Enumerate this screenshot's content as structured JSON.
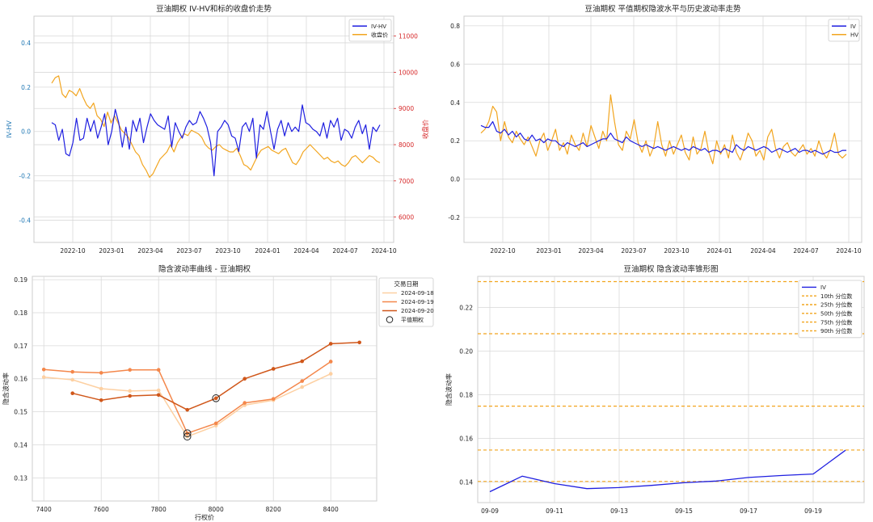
{
  "chart_data": [
    {
      "id": "p1",
      "type": "line",
      "title": "豆油期权 IV-HV和标的收盘价走势",
      "ylabel": "IV-HV",
      "y2label": "收盘价",
      "x_ticks": [
        "2022-10",
        "2023-01",
        "2023-04",
        "2023-07",
        "2023-10",
        "2024-01",
        "2024-04",
        "2024-07",
        "2024-10"
      ],
      "ylim": [
        -0.5,
        0.52
      ],
      "y_ticks": [
        "-0.4",
        "-0.2",
        "0.0",
        "0.2",
        "0.4"
      ],
      "y2lim": [
        5300,
        11550
      ],
      "y2_ticks": [
        "6000",
        "7000",
        "8000",
        "9000",
        "10000",
        "11000"
      ],
      "legend": [
        "IV-HV",
        "收盘价"
      ],
      "series": [
        {
          "name": "IV-HV",
          "axis": "left",
          "color": "#1f1fe0",
          "x_range": [
            "2022-08-01",
            "2024-09-20"
          ],
          "values": [
            0.04,
            0.03,
            -0.04,
            0.01,
            -0.1,
            -0.11,
            -0.05,
            0.06,
            -0.04,
            -0.03,
            0.06,
            0.0,
            0.05,
            -0.03,
            0.02,
            0.08,
            -0.06,
            0.0,
            0.1,
            0.04,
            -0.07,
            0.02,
            -0.08,
            0.05,
            0.0,
            0.06,
            -0.05,
            0.02,
            0.08,
            0.05,
            0.03,
            0.02,
            0.01,
            0.07,
            -0.07,
            0.04,
            0.0,
            -0.03,
            0.02,
            0.05,
            0.03,
            0.04,
            0.09,
            0.06,
            0.02,
            -0.05,
            -0.2,
            0.0,
            0.02,
            0.05,
            0.03,
            -0.02,
            -0.03,
            -0.09,
            0.02,
            0.04,
            0.0,
            0.06,
            -0.12,
            0.03,
            0.01,
            0.09,
            0.0,
            -0.08,
            0.01,
            0.05,
            -0.02,
            0.04,
            0.0,
            0.02,
            0.0,
            0.12,
            0.04,
            0.03,
            0.01,
            0.0,
            -0.02,
            0.04,
            -0.03,
            0.05,
            0.02,
            0.06,
            -0.04,
            0.01,
            0.0,
            -0.03,
            0.02,
            0.05,
            -0.01,
            0.03,
            -0.08,
            0.02,
            0.0,
            0.03
          ]
        },
        {
          "name": "收盘价",
          "axis": "right",
          "color": "#f2a51f",
          "x_range": [
            "2022-08-01",
            "2024-09-20"
          ],
          "values": [
            9700,
            9850,
            9900,
            9400,
            9300,
            9500,
            9450,
            9350,
            9550,
            9300,
            9100,
            9000,
            9150,
            8800,
            8700,
            8500,
            8900,
            8600,
            8800,
            8600,
            8400,
            8300,
            8200,
            8000,
            7800,
            7700,
            7450,
            7300,
            7100,
            7200,
            7400,
            7600,
            7700,
            7800,
            8000,
            7800,
            8050,
            8200,
            8300,
            8250,
            8400,
            8350,
            8300,
            8200,
            8000,
            7900,
            7850,
            7950,
            8000,
            7900,
            7850,
            7800,
            7800,
            7900,
            7700,
            7450,
            7400,
            7300,
            7500,
            7700,
            7850,
            7900,
            7950,
            7850,
            7800,
            7750,
            7850,
            7900,
            7700,
            7500,
            7450,
            7600,
            7800,
            7900,
            8000,
            7900,
            7800,
            7700,
            7600,
            7650,
            7550,
            7500,
            7550,
            7450,
            7400,
            7500,
            7650,
            7700,
            7600,
            7500,
            7600,
            7700,
            7650,
            7550,
            7500
          ]
        }
      ]
    },
    {
      "id": "p2",
      "type": "line",
      "title": "豆油期权 平值期权隐波水平与历史波动率走势",
      "x_ticks": [
        "2022-10",
        "2023-01",
        "2023-04",
        "2023-07",
        "2023-10",
        "2024-01",
        "2024-04",
        "2024-07",
        "2024-10"
      ],
      "ylim": [
        -0.33,
        0.85
      ],
      "y_ticks": [
        "-0.2",
        "0.0",
        "0.2",
        "0.4",
        "0.6",
        "0.8"
      ],
      "legend": [
        "IV",
        "HV"
      ],
      "series": [
        {
          "name": "IV",
          "color": "#1f1fe0",
          "x_range": [
            "2022-08-01",
            "2024-09-20"
          ],
          "values": [
            0.28,
            0.27,
            0.27,
            0.3,
            0.25,
            0.24,
            0.26,
            0.23,
            0.25,
            0.22,
            0.24,
            0.21,
            0.2,
            0.23,
            0.2,
            0.21,
            0.19,
            0.21,
            0.2,
            0.2,
            0.18,
            0.17,
            0.19,
            0.18,
            0.17,
            0.18,
            0.19,
            0.17,
            0.18,
            0.19,
            0.2,
            0.21,
            0.21,
            0.24,
            0.21,
            0.2,
            0.19,
            0.22,
            0.2,
            0.19,
            0.18,
            0.17,
            0.18,
            0.17,
            0.16,
            0.17,
            0.16,
            0.15,
            0.16,
            0.17,
            0.16,
            0.15,
            0.16,
            0.15,
            0.17,
            0.16,
            0.15,
            0.16,
            0.14,
            0.15,
            0.15,
            0.14,
            0.16,
            0.15,
            0.14,
            0.18,
            0.16,
            0.15,
            0.17,
            0.16,
            0.15,
            0.16,
            0.17,
            0.16,
            0.14,
            0.15,
            0.16,
            0.15,
            0.14,
            0.15,
            0.16,
            0.14,
            0.15,
            0.15,
            0.14,
            0.15,
            0.14,
            0.13,
            0.14,
            0.15,
            0.14,
            0.14,
            0.15,
            0.15
          ]
        },
        {
          "name": "HV",
          "color": "#f2a51f",
          "x_range": [
            "2022-08-01",
            "2024-09-20"
          ],
          "values": [
            0.24,
            0.26,
            0.3,
            0.38,
            0.35,
            0.2,
            0.3,
            0.22,
            0.19,
            0.25,
            0.21,
            0.18,
            0.22,
            0.17,
            0.12,
            0.2,
            0.24,
            0.15,
            0.2,
            0.26,
            0.15,
            0.19,
            0.13,
            0.23,
            0.18,
            0.15,
            0.24,
            0.17,
            0.28,
            0.22,
            0.16,
            0.25,
            0.2,
            0.44,
            0.3,
            0.18,
            0.15,
            0.25,
            0.21,
            0.31,
            0.19,
            0.14,
            0.2,
            0.12,
            0.17,
            0.3,
            0.18,
            0.12,
            0.2,
            0.13,
            0.18,
            0.23,
            0.14,
            0.1,
            0.22,
            0.13,
            0.16,
            0.25,
            0.14,
            0.08,
            0.2,
            0.13,
            0.18,
            0.11,
            0.23,
            0.14,
            0.1,
            0.16,
            0.24,
            0.2,
            0.12,
            0.15,
            0.1,
            0.22,
            0.26,
            0.16,
            0.11,
            0.17,
            0.19,
            0.14,
            0.12,
            0.15,
            0.18,
            0.13,
            0.16,
            0.12,
            0.2,
            0.14,
            0.11,
            0.16,
            0.24,
            0.13,
            0.11,
            0.13
          ]
        }
      ]
    },
    {
      "id": "p3",
      "type": "line",
      "title": "隐含波动率曲线 - 豆油期权",
      "xlabel": "行权价",
      "ylabel": "隐含波动率",
      "xlim": [
        7360,
        8560
      ],
      "x_ticks": [
        7400,
        7600,
        7800,
        8000,
        8200,
        8400
      ],
      "ylim": [
        0.123,
        0.191
      ],
      "y_ticks": [
        "0.13",
        "0.14",
        "0.15",
        "0.16",
        "0.17",
        "0.18",
        "0.19"
      ],
      "legend_title": "交易日期",
      "legend": [
        "2024-09-18",
        "2024-09-19",
        "2024-09-20",
        "平值期权"
      ],
      "series": [
        {
          "name": "2024-09-18",
          "color": "#fdd0a2",
          "x": [
            7400,
            7500,
            7600,
            7700,
            7800,
            7900,
            8000,
            8100,
            8200,
            8300,
            8400
          ],
          "values": [
            0.1605,
            0.1597,
            0.157,
            0.1563,
            0.1565,
            0.1425,
            0.1458,
            0.152,
            0.1535,
            0.1575,
            0.1615
          ]
        },
        {
          "name": "2024-09-19",
          "color": "#f4874b",
          "x": [
            7400,
            7500,
            7600,
            7700,
            7800,
            7900,
            8000,
            8100,
            8200,
            8300,
            8400
          ],
          "values": [
            0.1628,
            0.1621,
            0.1618,
            0.1627,
            0.1627,
            0.1435,
            0.1465,
            0.1527,
            0.1539,
            0.1593,
            0.1652
          ]
        },
        {
          "name": "2024-09-20",
          "color": "#d0571a",
          "x": [
            7500,
            7600,
            7700,
            7800,
            7900,
            8000,
            8100,
            8200,
            8300,
            8400,
            8500
          ],
          "values": [
            0.1556,
            0.1535,
            0.1548,
            0.1551,
            0.1506,
            0.1541,
            0.16,
            0.163,
            0.1653,
            0.1706,
            0.171
          ]
        }
      ],
      "atm_markers": [
        {
          "x": 7900,
          "value": 0.1425
        },
        {
          "x": 7900,
          "value": 0.1435
        },
        {
          "x": 8000,
          "value": 0.1541
        }
      ]
    },
    {
      "id": "p4",
      "type": "line",
      "title": "豆油期权 隐含波动率锥形图",
      "ylabel": "隐含波动率",
      "x_ticks": [
        "09-09",
        "09-11",
        "09-13",
        "09-15",
        "09-17",
        "09-19"
      ],
      "ylim": [
        0.1305,
        0.2342
      ],
      "y_ticks": [
        "0.14",
        "0.16",
        "0.18",
        "0.20",
        "0.22"
      ],
      "legend": [
        "IV",
        "10th 分位数",
        "25th 分位数",
        "50th 分位数",
        "75th 分位数",
        "90th 分位数"
      ],
      "series": [
        {
          "name": "IV",
          "color": "#1f1fe0",
          "x": [
            0,
            1,
            2,
            3,
            4,
            5,
            6,
            7,
            8,
            9,
            10,
            11
          ],
          "values": [
            0.1355,
            0.1426,
            0.1392,
            0.1369,
            0.1374,
            0.1384,
            0.1396,
            0.1404,
            0.142,
            0.1429,
            0.1436,
            0.1545
          ]
        }
      ],
      "quantiles": [
        {
          "name": "10th 分位数",
          "value": 0.1402
        },
        {
          "name": "25th 分位数",
          "value": 0.1546
        },
        {
          "name": "50th 分位数",
          "value": 0.1747
        },
        {
          "name": "75th 分位数",
          "value": 0.2079
        },
        {
          "name": "90th 分位数",
          "value": 0.2318
        }
      ]
    }
  ]
}
